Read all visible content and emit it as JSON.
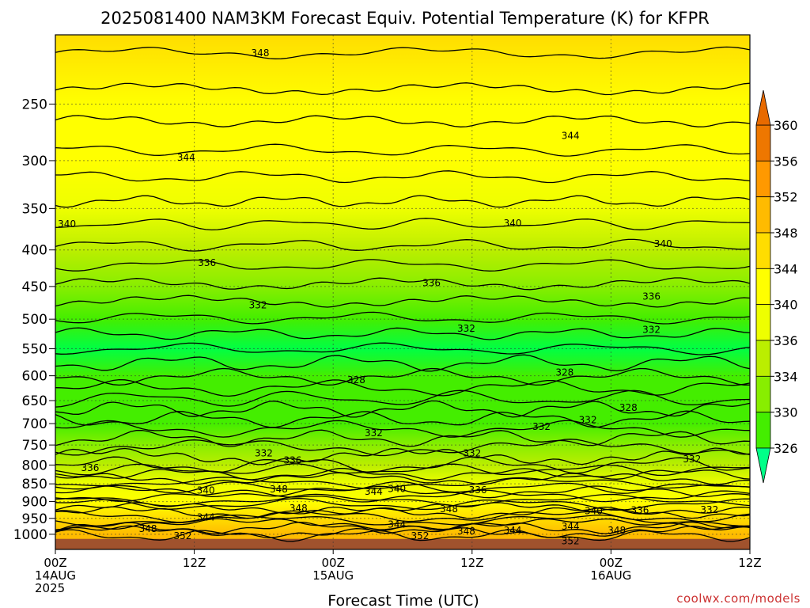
{
  "title": "2025081400 NAM3KM Forecast Equiv. Potential Temperature (K) for KFPR",
  "credit": "coolwx.com/models",
  "chart_data": {
    "type": "heatmap",
    "title": "2025081400 NAM3KM Forecast Equiv. Potential Temperature (K) for KFPR",
    "xlabel": "Forecast Time (UTC)",
    "ylabel": "",
    "x_range_hours": [
      0,
      60
    ],
    "y_range_hpa": [
      200,
      1050
    ],
    "y_scale": "log-pressure (inverted)",
    "grid": true,
    "y_ticks": [
      250,
      300,
      350,
      400,
      450,
      500,
      550,
      600,
      650,
      700,
      750,
      800,
      850,
      900,
      950,
      1000
    ],
    "x_ticks": [
      {
        "hour": 0,
        "lines": [
          "00Z",
          "14AUG",
          "2025"
        ]
      },
      {
        "hour": 12,
        "lines": [
          "12Z"
        ]
      },
      {
        "hour": 24,
        "lines": [
          "00Z",
          "15AUG"
        ]
      },
      {
        "hour": 36,
        "lines": [
          "12Z"
        ]
      },
      {
        "hour": 48,
        "lines": [
          "00Z",
          "16AUG"
        ]
      },
      {
        "hour": 60,
        "lines": [
          "12Z"
        ]
      }
    ],
    "colorbar": {
      "levels": [
        326,
        330,
        334,
        336,
        340,
        344,
        348,
        352,
        356,
        360
      ],
      "colors": [
        "#00ff44",
        "#44ee00",
        "#88ee00",
        "#bbee00",
        "#eeff00",
        "#ffff00",
        "#ffdd00",
        "#ffbb00",
        "#ff9900",
        "#ee7700"
      ],
      "over_color": "#e86a00",
      "under_color": "#00ff88"
    },
    "profile": [
      {
        "p": 200,
        "theta_e": 350
      },
      {
        "p": 250,
        "theta_e": 347
      },
      {
        "p": 300,
        "theta_e": 344
      },
      {
        "p": 350,
        "theta_e": 341
      },
      {
        "p": 400,
        "theta_e": 338
      },
      {
        "p": 450,
        "theta_e": 335
      },
      {
        "p": 500,
        "theta_e": 331
      },
      {
        "p": 550,
        "theta_e": 329
      },
      {
        "p": 600,
        "theta_e": 330
      },
      {
        "p": 650,
        "theta_e": 332
      },
      {
        "p": 700,
        "theta_e": 333
      },
      {
        "p": 750,
        "theta_e": 334
      },
      {
        "p": 800,
        "theta_e": 337
      },
      {
        "p": 850,
        "theta_e": 340
      },
      {
        "p": 900,
        "theta_e": 344
      },
      {
        "p": 950,
        "theta_e": 348
      },
      {
        "p": 1000,
        "theta_e": 352
      }
    ],
    "contour_labels": [
      {
        "value": "348",
        "hour": 17.7,
        "p": 212
      },
      {
        "value": "344",
        "hour": 44.5,
        "p": 277
      },
      {
        "value": "344",
        "hour": 11.3,
        "p": 297
      },
      {
        "value": "340",
        "hour": 1.0,
        "p": 368
      },
      {
        "value": "340",
        "hour": 39.5,
        "p": 367
      },
      {
        "value": "340",
        "hour": 52.5,
        "p": 392
      },
      {
        "value": "336",
        "hour": 13.1,
        "p": 417
      },
      {
        "value": "336",
        "hour": 32.5,
        "p": 445
      },
      {
        "value": "336",
        "hour": 51.5,
        "p": 465
      },
      {
        "value": "332",
        "hour": 17.5,
        "p": 478
      },
      {
        "value": "332",
        "hour": 35.5,
        "p": 515
      },
      {
        "value": "332",
        "hour": 51.5,
        "p": 517
      },
      {
        "value": "328",
        "hour": 26.0,
        "p": 608
      },
      {
        "value": "328",
        "hour": 44.0,
        "p": 594
      },
      {
        "value": "328",
        "hour": 49.5,
        "p": 665
      },
      {
        "value": "332",
        "hour": 42.0,
        "p": 707
      },
      {
        "value": "332",
        "hour": 46.0,
        "p": 692
      },
      {
        "value": "332",
        "hour": 27.5,
        "p": 722
      },
      {
        "value": "332",
        "hour": 36.0,
        "p": 770
      },
      {
        "value": "332",
        "hour": 55.0,
        "p": 785
      },
      {
        "value": "332",
        "hour": 18.0,
        "p": 770
      },
      {
        "value": "336",
        "hour": 20.5,
        "p": 788
      },
      {
        "value": "336",
        "hour": 3.0,
        "p": 807
      },
      {
        "value": "348",
        "hour": 19.3,
        "p": 865
      },
      {
        "value": "344",
        "hour": 27.5,
        "p": 872
      },
      {
        "value": "340",
        "hour": 13.0,
        "p": 868
      },
      {
        "value": "340",
        "hour": 29.5,
        "p": 864
      },
      {
        "value": "336",
        "hour": 36.5,
        "p": 867
      },
      {
        "value": "348",
        "hour": 21.0,
        "p": 920
      },
      {
        "value": "348",
        "hour": 34.0,
        "p": 922
      },
      {
        "value": "344",
        "hour": 13.0,
        "p": 947
      },
      {
        "value": "344",
        "hour": 29.5,
        "p": 969
      },
      {
        "value": "340",
        "hour": 46.5,
        "p": 928
      },
      {
        "value": "336",
        "hour": 50.5,
        "p": 925
      },
      {
        "value": "332",
        "hour": 56.5,
        "p": 924
      },
      {
        "value": "344",
        "hour": 44.5,
        "p": 975
      },
      {
        "value": "348",
        "hour": 8.0,
        "p": 982
      },
      {
        "value": "352",
        "hour": 11.0,
        "p": 1005
      },
      {
        "value": "352",
        "hour": 31.5,
        "p": 1005
      },
      {
        "value": "348",
        "hour": 35.5,
        "p": 990
      },
      {
        "value": "344",
        "hour": 39.5,
        "p": 988
      },
      {
        "value": "348",
        "hour": 48.5,
        "p": 988
      },
      {
        "value": "352",
        "hour": 44.5,
        "p": 1022
      }
    ]
  }
}
